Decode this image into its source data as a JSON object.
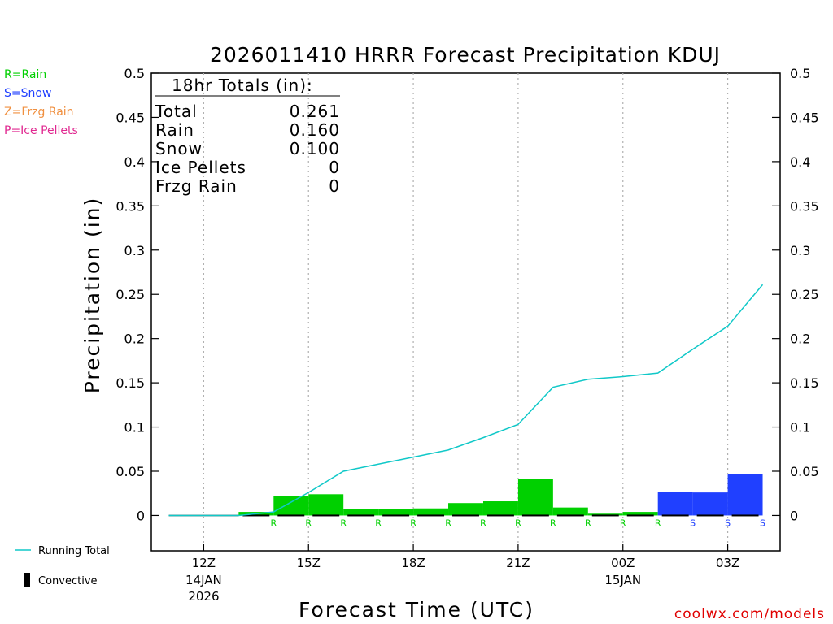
{
  "chart_data": {
    "type": "bar",
    "title": "2026011410 HRRR Forecast Precipitation KDUJ",
    "xlabel": "Forecast Time (UTC)",
    "ylabel": "Precipitation (in)",
    "ylim": [
      -0.04,
      0.5
    ],
    "xlim": [
      10.5,
      28.5
    ],
    "yticks": [
      "0",
      "0.05",
      "0.1",
      "0.15",
      "0.2",
      "0.25",
      "0.3",
      "0.35",
      "0.4",
      "0.45",
      "0.5"
    ],
    "ytick_values": [
      0,
      0.05,
      0.1,
      0.15,
      0.2,
      0.25,
      0.3,
      0.35,
      0.4,
      0.45,
      0.5
    ],
    "xtick_hours": [
      12,
      15,
      18,
      21,
      24,
      27
    ],
    "xticks": [
      {
        "line1": "12Z",
        "line2": "14JAN",
        "line3": "2026"
      },
      {
        "line1": "15Z",
        "line2": "",
        "line3": ""
      },
      {
        "line1": "18Z",
        "line2": "",
        "line3": ""
      },
      {
        "line1": "21Z",
        "line2": "",
        "line3": ""
      },
      {
        "line1": "00Z",
        "line2": "15JAN",
        "line3": ""
      },
      {
        "line1": "03Z",
        "line2": "",
        "line3": ""
      }
    ],
    "grid": "vertical-dotted",
    "hours": [
      11,
      12,
      13,
      14,
      15,
      16,
      17,
      18,
      19,
      20,
      21,
      22,
      23,
      24,
      25,
      26,
      27,
      28
    ],
    "series": [
      {
        "name": "Running Total",
        "kind": "line",
        "color": "#10c8c8",
        "values": [
          0,
          0,
          0,
          0.004,
          0.026,
          0.05,
          0.058,
          0.066,
          0.074,
          0.088,
          0.103,
          0.145,
          0.154,
          0.157,
          0.161,
          0.188,
          0.214,
          0.261
        ]
      }
    ],
    "bars": [
      {
        "hour": 14,
        "value": 0.004,
        "type": "R"
      },
      {
        "hour": 15,
        "value": 0.022,
        "type": "R"
      },
      {
        "hour": 16,
        "value": 0.024,
        "type": "R"
      },
      {
        "hour": 17,
        "value": 0.007,
        "type": "R"
      },
      {
        "hour": 18,
        "value": 0.007,
        "type": "R"
      },
      {
        "hour": 19,
        "value": 0.008,
        "type": "R"
      },
      {
        "hour": 20,
        "value": 0.014,
        "type": "R"
      },
      {
        "hour": 21,
        "value": 0.016,
        "type": "R"
      },
      {
        "hour": 22,
        "value": 0.041,
        "type": "R"
      },
      {
        "hour": 23,
        "value": 0.009,
        "type": "R"
      },
      {
        "hour": 24,
        "value": 0.002,
        "type": "R"
      },
      {
        "hour": 25,
        "value": 0.004,
        "type": "R"
      },
      {
        "hour": 26,
        "value": 0.027,
        "type": "S"
      },
      {
        "hour": 27,
        "value": 0.026,
        "type": "S"
      },
      {
        "hour": 28,
        "value": 0.047,
        "type": "S"
      }
    ],
    "type_colors": {
      "R": "#00d000",
      "S": "#2040ff",
      "Z": "#f09040",
      "P": "#e02890"
    },
    "convective_color": "#000000",
    "totals_box": {
      "header": "18hr Totals (in):",
      "rows": [
        {
          "label": "Total",
          "value": "0.261"
        },
        {
          "label": "Rain",
          "value": "0.160"
        },
        {
          "label": "Snow",
          "value": "0.100"
        },
        {
          "label": "Ice Pellets",
          "value": "0"
        },
        {
          "label": "Frzg Rain",
          "value": "0"
        }
      ]
    },
    "type_legend": [
      {
        "text": "R=Rain",
        "color": "#00d000"
      },
      {
        "text": "S=Snow",
        "color": "#2040ff"
      },
      {
        "text": "Z=Frzg Rain",
        "color": "#f09040"
      },
      {
        "text": "P=Ice Pellets",
        "color": "#e02890"
      }
    ],
    "line_legend": {
      "running_total": "Running Total",
      "convective": "Convective"
    }
  },
  "credit": "coolwx.com/models"
}
